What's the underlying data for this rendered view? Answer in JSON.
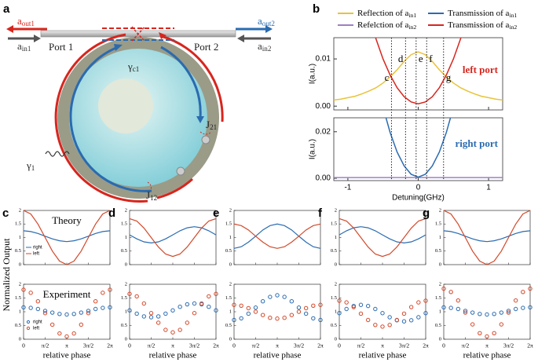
{
  "diagram": {
    "label": "a",
    "texts": [
      {
        "main": "a",
        "sub": "out1"
      },
      {
        "main": "a",
        "sub": "in1"
      },
      {
        "main": "Port 1"
      },
      {
        "main": "Port 2"
      },
      {
        "main": "a",
        "sub": "out2"
      },
      {
        "main": "a",
        "sub": "in2"
      },
      {
        "main": "γ",
        "sub": "c1"
      },
      {
        "main": "J",
        "sub": "21"
      },
      {
        "main": "γ",
        "sub": "1"
      },
      {
        "main": "J",
        "sub": "12"
      }
    ]
  },
  "chart_data": [
    {
      "type": "line",
      "label": "b",
      "xlabel": "Detuning(GHz)",
      "xlim": [
        -1.2,
        1.2
      ],
      "xticks": [
        -1,
        0,
        1
      ],
      "x": [
        -1.2,
        -1.1,
        -1.0,
        -0.9,
        -0.8,
        -0.7,
        -0.6,
        -0.5,
        -0.4,
        -0.3,
        -0.2,
        -0.1,
        0,
        0.1,
        0.2,
        0.3,
        0.4,
        0.5,
        0.6,
        0.7,
        0.8,
        0.9,
        1.0,
        1.1,
        1.2
      ],
      "panels": [
        {
          "ylabel": "I(a.u.)",
          "ylim": [
            -0.0008,
            0.0145
          ],
          "yticks": [
            {
              "value": 0,
              "label": "0.00"
            },
            {
              "value": 0.01,
              "label": "0.01"
            }
          ],
          "annotation": "left port",
          "annotation_color": "#d7261e"
        },
        {
          "ylabel": "I(a.u.)",
          "ylim": [
            -0.001,
            0.026
          ],
          "yticks": [
            {
              "value": 0,
              "label": "0.00"
            },
            {
              "value": 0.02,
              "label": "0.02"
            }
          ],
          "annotation": "right port",
          "annotation_color": "#2a6bb0"
        }
      ],
      "series": [
        {
          "name": "Reflection of a",
          "name_sub": "in1",
          "color": "#e8c33a",
          "panel": 0,
          "values": [
            0.0013,
            0.0015,
            0.0018,
            0.0021,
            0.0026,
            0.0032,
            0.0039,
            0.0049,
            0.0062,
            0.0077,
            0.0095,
            0.0109,
            0.0115,
            0.0109,
            0.0095,
            0.0077,
            0.0062,
            0.0049,
            0.0039,
            0.0032,
            0.0026,
            0.0021,
            0.0018,
            0.0015,
            0.0013
          ]
        },
        {
          "name": "Refelction of a",
          "name_sub": "in2",
          "color": "#9e7fc0",
          "panel": 1,
          "values": [
            0.0003,
            0.0003,
            0.0003,
            0.0003,
            0.0003,
            0.0003,
            0.0003,
            0.0003,
            0.0003,
            0.0003,
            0.0003,
            0.0003,
            0.0003,
            0.0003,
            0.0003,
            0.0003,
            0.0003,
            0.0003,
            0.0003,
            0.0003,
            0.0003,
            0.0003,
            0.0003,
            0.0003,
            0.0003
          ]
        },
        {
          "name": "Transmission of a",
          "name_sub": "in1",
          "color": "#2a6bb0",
          "panel": 1,
          "values": [
            null,
            null,
            null,
            null,
            null,
            null,
            null,
            0.0305,
            0.0197,
            0.0113,
            0.0053,
            0.0017,
            0.0005,
            0.0017,
            0.0053,
            0.0113,
            0.0197,
            0.0305,
            null,
            null,
            null,
            null,
            null,
            null,
            null
          ]
        },
        {
          "name": "Transmission of a",
          "name_sub": "in2",
          "color": "#d7261e",
          "panel": 0,
          "values": [
            null,
            null,
            null,
            null,
            null,
            0.0191,
            0.0142,
            0.01,
            0.0066,
            0.0039,
            0.002,
            0.0009,
            0.0005,
            0.0009,
            0.002,
            0.0039,
            0.0066,
            0.01,
            0.0142,
            0.0191,
            null,
            null,
            null,
            null,
            null
          ]
        }
      ],
      "markers": [
        {
          "label": "c",
          "x": -0.38
        },
        {
          "label": "d",
          "x": -0.18
        },
        {
          "label": "e",
          "x": -0.03
        },
        {
          "label": "f",
          "x": 0.12
        },
        {
          "label": "g",
          "x": 0.36
        }
      ]
    },
    {
      "type": "line",
      "ylabel": "Normalized Output",
      "xlabel": "relative phase",
      "x": [
        0,
        0.5236,
        1.0472,
        1.5708,
        2.0944,
        2.618,
        3.1416,
        3.6652,
        4.1888,
        4.7124,
        5.236,
        5.7596,
        6.2832
      ],
      "xlim": [
        0,
        6.2832
      ],
      "xticks": [
        0,
        {
          "value": 1.5708,
          "label": "π/2"
        },
        {
          "value": 3.1416,
          "label": "π"
        },
        {
          "value": 4.7124,
          "label": "3π/2"
        },
        {
          "value": 6.2832,
          "label": "2π"
        }
      ],
      "ylim": [
        0,
        2
      ],
      "yticks": [
        0,
        0.5,
        1,
        1.5,
        2
      ],
      "rows": [
        "Theory",
        "Experiment"
      ],
      "series_names": [
        "right",
        "left"
      ],
      "colors": [
        "#2a6bb0",
        "#d2492a"
      ],
      "panels": [
        {
          "label": "c",
          "theory": [
            [
              1.25,
              1.22,
              1.15,
              1.05,
              0.95,
              0.88,
              0.85,
              0.88,
              0.95,
              1.05,
              1.15,
              1.22,
              1.25
            ],
            [
              2,
              1.87,
              1.5,
              1,
              0.5,
              0.13,
              0,
              0.13,
              0.5,
              1,
              1.5,
              1.87,
              2
            ]
          ],
          "experiment": [
            [
              1.16,
              1.14,
              1.1,
              1.03,
              0.97,
              0.92,
              0.9,
              0.92,
              0.97,
              1.03,
              1.1,
              1.14,
              1.16
            ],
            [
              1.8,
              1.69,
              1.38,
              0.95,
              0.53,
              0.21,
              0.1,
              0.21,
              0.53,
              0.95,
              1.38,
              1.69,
              1.8
            ]
          ]
        },
        {
          "label": "d",
          "theory": [
            [
              1.1,
              0.95,
              0.84,
              0.8,
              0.84,
              0.95,
              1.1,
              1.25,
              1.36,
              1.4,
              1.36,
              1.25,
              1.1
            ],
            [
              1.7,
              1.61,
              1.35,
              1,
              0.65,
              0.39,
              0.3,
              0.39,
              0.65,
              1,
              1.35,
              1.61,
              1.7
            ]
          ],
          "experiment": [
            [
              1.05,
              0.93,
              0.83,
              0.8,
              0.83,
              0.93,
              1.05,
              1.18,
              1.27,
              1.3,
              1.27,
              1.18,
              1.05
            ],
            [
              1.65,
              1.56,
              1.3,
              0.95,
              0.6,
              0.34,
              0.25,
              0.34,
              0.6,
              0.95,
              1.3,
              1.56,
              1.65
            ]
          ]
        },
        {
          "label": "e",
          "theory": [
            [
              0.6,
              0.66,
              0.83,
              1.05,
              1.28,
              1.44,
              1.5,
              1.44,
              1.28,
              1.05,
              0.83,
              0.66,
              0.6
            ],
            [
              1.5,
              1.44,
              1.28,
              1.05,
              0.83,
              0.66,
              0.6,
              0.66,
              0.83,
              1.05,
              1.28,
              1.44,
              1.5
            ]
          ],
          "experiment": [
            [
              0.7,
              0.76,
              0.93,
              1.15,
              1.38,
              1.54,
              1.6,
              1.54,
              1.38,
              1.15,
              0.93,
              0.76,
              0.7
            ],
            [
              1.25,
              1.22,
              1.13,
              1.0,
              0.88,
              0.78,
              0.75,
              0.78,
              0.88,
              1.0,
              1.13,
              1.22,
              1.25
            ]
          ]
        },
        {
          "label": "f",
          "theory": [
            [
              1.1,
              1.25,
              1.36,
              1.4,
              1.36,
              1.25,
              1.1,
              0.95,
              0.84,
              0.8,
              0.84,
              0.95,
              1.1
            ],
            [
              1.7,
              1.61,
              1.35,
              1,
              0.65,
              0.39,
              0.3,
              0.39,
              0.65,
              1,
              1.35,
              1.61,
              1.7
            ]
          ],
          "experiment": [
            [
              0.95,
              1.1,
              1.21,
              1.25,
              1.21,
              1.1,
              0.95,
              0.8,
              0.69,
              0.65,
              0.69,
              0.8,
              0.95
            ],
            [
              1.4,
              1.34,
              1.17,
              0.93,
              0.7,
              0.52,
              0.46,
              0.52,
              0.7,
              0.93,
              1.17,
              1.34,
              1.4
            ]
          ]
        },
        {
          "label": "g",
          "theory": [
            [
              1.25,
              1.22,
              1.15,
              1.05,
              0.95,
              0.88,
              0.85,
              0.88,
              0.95,
              1.05,
              1.15,
              1.22,
              1.25
            ],
            [
              2,
              1.87,
              1.5,
              1,
              0.5,
              0.13,
              0,
              0.13,
              0.5,
              1,
              1.5,
              1.87,
              2
            ]
          ],
          "experiment": [
            [
              1.16,
              1.14,
              1.1,
              1.03,
              0.97,
              0.92,
              0.9,
              0.92,
              0.97,
              1.03,
              1.1,
              1.14,
              1.16
            ],
            [
              1.84,
              1.72,
              1.41,
              0.97,
              0.54,
              0.22,
              0.1,
              0.22,
              0.54,
              0.97,
              1.41,
              1.72,
              1.84
            ]
          ]
        }
      ]
    }
  ]
}
